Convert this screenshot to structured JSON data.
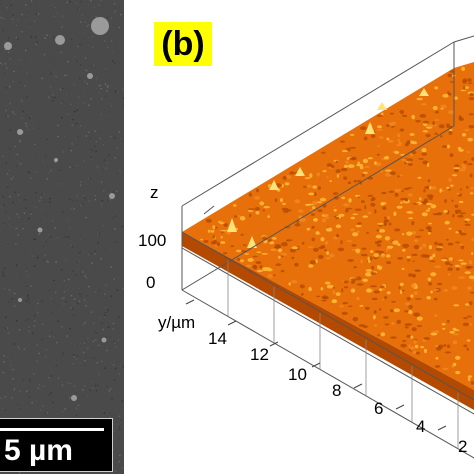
{
  "sem_panel": {
    "scale_bar_label": "5 µm"
  },
  "afm_panel": {
    "panel_label": "(b)",
    "z_axis": {
      "label": "z",
      "ticks": [
        "100",
        "0"
      ]
    },
    "y_axis": {
      "label": "y/µm",
      "ticks": [
        "14",
        "12",
        "10",
        "8",
        "6",
        "4",
        "2"
      ]
    },
    "surface_colors": {
      "base": "#e8700a",
      "dark": "#b44a00",
      "highlight": "#ffc13a",
      "peak": "#ffe27a"
    }
  }
}
